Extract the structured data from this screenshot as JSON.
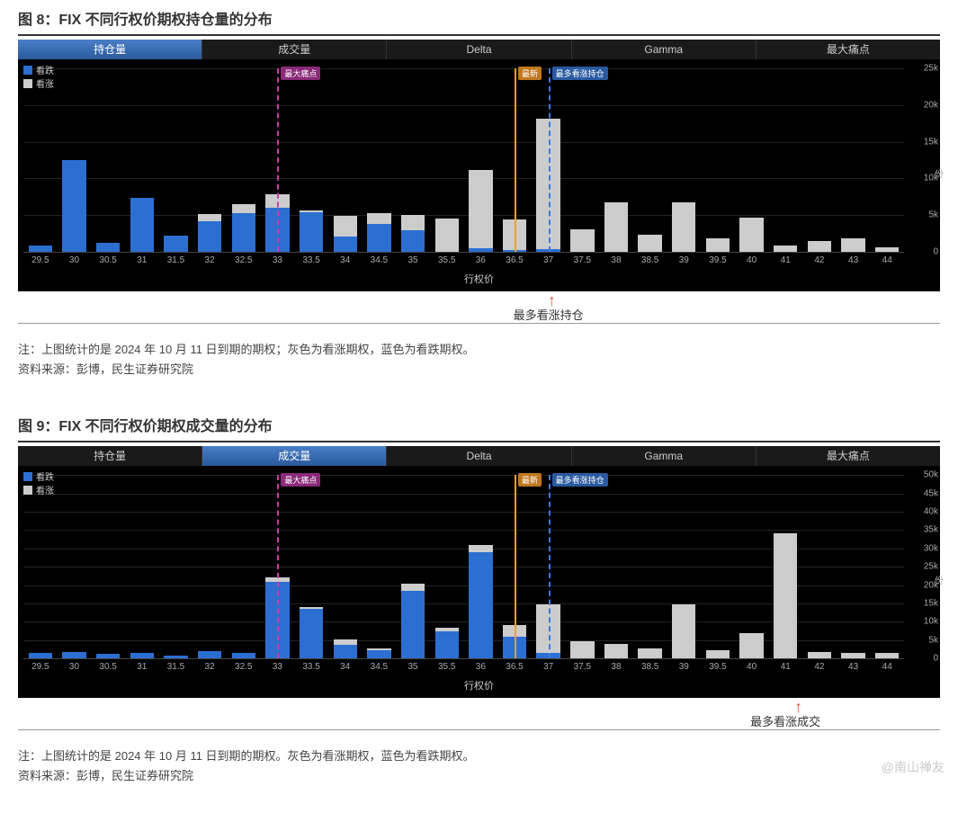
{
  "watermark": "@南山禅友",
  "shared": {
    "tabs": [
      "持仓量",
      "成交量",
      "Delta",
      "Gamma",
      "最大痛点"
    ],
    "legend": [
      {
        "label": "看跌",
        "color": "#2c6fd1"
      },
      {
        "label": "看涨",
        "color": "#cccccc"
      }
    ],
    "xlabel": "行权价",
    "categories": [
      "29.5",
      "30",
      "30.5",
      "31",
      "31.5",
      "32",
      "32.5",
      "33",
      "33.5",
      "34",
      "34.5",
      "35",
      "35.5",
      "36",
      "36.5",
      "37",
      "37.5",
      "38",
      "38.5",
      "39",
      "39.5",
      "40",
      "41",
      "42",
      "43",
      "44"
    ],
    "colors": {
      "put": "#2c6fd1",
      "call": "#cccccc",
      "bg": "#000000",
      "grid": "#222222",
      "axis_text": "#aaaaaa"
    },
    "vlines": {
      "max_pain": {
        "label": "最大痛点",
        "color": "#c43fa8",
        "style": "dashed",
        "label_bg": "#8a2a78"
      },
      "latest": {
        "label": "最新",
        "color": "#f0a030",
        "style": "solid",
        "label_bg": "#c07820"
      },
      "max_call": {
        "label": "最多看涨持仓",
        "color": "#3a7ad9",
        "style": "dashed",
        "label_bg": "#2a5aa0"
      }
    }
  },
  "fig8": {
    "title": "图 8：FIX 不同行权价期权持仓量的分布",
    "active_tab": 0,
    "ymax": 25000,
    "yticks": [
      0,
      5000,
      10000,
      15000,
      20000,
      25000
    ],
    "ytick_labels": [
      "0",
      "5k",
      "10k",
      "15k",
      "20k",
      "25k"
    ],
    "yunit": "份",
    "put": [
      900,
      12500,
      1200,
      7300,
      2200,
      4200,
      5300,
      6000,
      5400,
      2100,
      3800,
      3000,
      0,
      500,
      200,
      400,
      0,
      0,
      0,
      0,
      0,
      0,
      0,
      0,
      0,
      0
    ],
    "call": [
      0,
      0,
      0,
      0,
      0,
      900,
      1200,
      1800,
      200,
      2800,
      1500,
      2000,
      4500,
      10700,
      4200,
      17800,
      3100,
      6800,
      2300,
      6700,
      1800,
      4700,
      800,
      1500,
      1900,
      600
    ],
    "vline_pos": {
      "max_pain": "33",
      "latest": "36.5",
      "max_call": "37"
    },
    "annotation": {
      "label": "最多看涨持仓",
      "at": "37"
    },
    "note1": "注：上图统计的是 2024 年 10 月 11 日到期的期权；灰色为看涨期权，蓝色为看跌期权。",
    "note2": "资料来源：彭博，民生证券研究院"
  },
  "fig9": {
    "title": "图 9：FIX 不同行权价期权成交量的分布",
    "active_tab": 1,
    "ymax": 50000,
    "yticks": [
      0,
      5000,
      10000,
      15000,
      20000,
      25000,
      30000,
      35000,
      40000,
      45000,
      50000
    ],
    "ytick_labels": [
      "0",
      "5k",
      "10k",
      "15k",
      "20k",
      "25k",
      "30k",
      "35k",
      "40k",
      "45k",
      "50k"
    ],
    "yunit": "份",
    "put": [
      1500,
      1800,
      1300,
      1600,
      900,
      2000,
      1500,
      21000,
      13500,
      3800,
      2200,
      18500,
      7500,
      29000,
      6000,
      1500,
      0,
      0,
      0,
      0,
      0,
      0,
      0,
      0,
      0,
      0
    ],
    "call": [
      0,
      0,
      0,
      0,
      0,
      0,
      0,
      1200,
      400,
      1500,
      600,
      2000,
      1000,
      2000,
      3000,
      13200,
      4800,
      4000,
      2800,
      14800,
      2200,
      7000,
      34000,
      1800,
      1600,
      1400
    ],
    "vline_pos": {
      "max_pain": "33",
      "latest": "36.5",
      "max_call": "37"
    },
    "annotation": {
      "label": "最多看涨成交",
      "at": "41"
    },
    "note1": "注：上图统计的是 2024 年 10 月 11 日到期的期权。灰色为看涨期权，蓝色为看跌期权。",
    "note2": "资料来源：彭博，民生证券研究院"
  }
}
